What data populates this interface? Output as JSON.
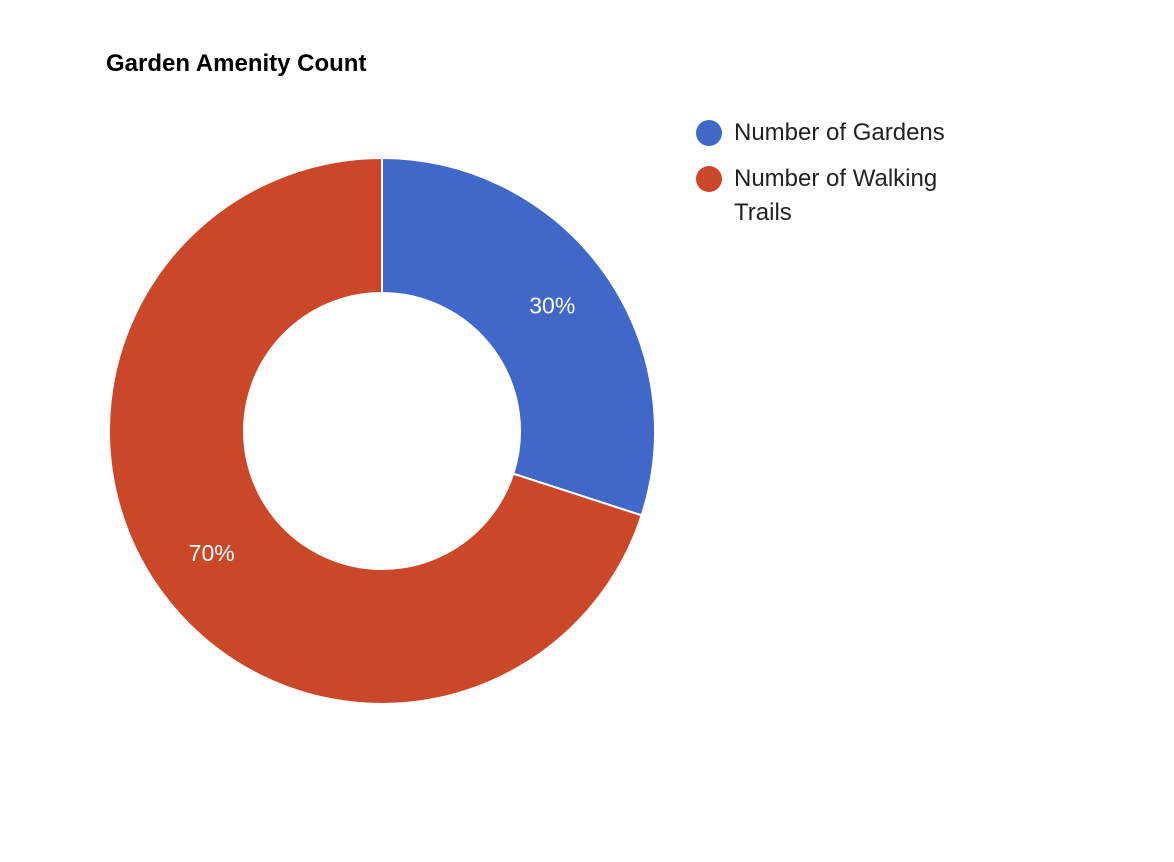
{
  "chart_data": {
    "type": "pie",
    "title": "Garden Amenity Count",
    "donut": true,
    "legend_position": "right",
    "slices": [
      {
        "name": "Number of Gardens",
        "value": 30,
        "label": "30%",
        "color": "#4167c9"
      },
      {
        "name": "Number of Walking Trails",
        "value": 70,
        "label": "70%",
        "color": "#cb4729"
      }
    ]
  }
}
